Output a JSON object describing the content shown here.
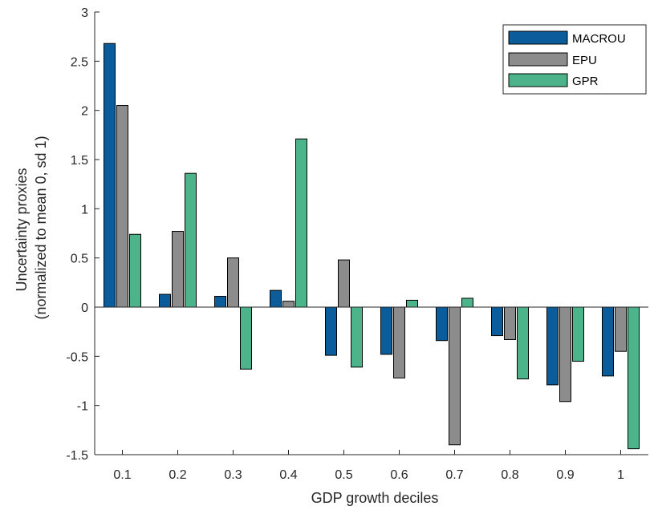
{
  "chart_data": {
    "type": "bar",
    "title": "",
    "xlabel": "GDP growth deciles",
    "ylabel_lines": [
      "Uncertainty proxies",
      "(normalized to mean 0, sd 1)"
    ],
    "categories": [
      "0.1",
      "0.2",
      "0.3",
      "0.4",
      "0.5",
      "0.6",
      "0.7",
      "0.8",
      "0.9",
      "1"
    ],
    "ylim": [
      -1.5,
      3
    ],
    "yticks": [
      -1.5,
      -1,
      -0.5,
      0,
      0.5,
      1,
      1.5,
      2,
      2.5,
      3
    ],
    "ytick_labels": [
      "-1.5",
      "-1",
      "-0.5",
      "0",
      "0.5",
      "1",
      "1.5",
      "2",
      "2.5",
      "3"
    ],
    "grid": false,
    "legend_position": "top-right",
    "series": [
      {
        "name": "MACROU",
        "color": "#0a5c9a",
        "values": [
          2.68,
          0.13,
          0.11,
          0.17,
          -0.49,
          -0.48,
          -0.34,
          -0.29,
          -0.79,
          -0.7
        ]
      },
      {
        "name": "EPU",
        "color": "#8c8c8c",
        "values": [
          2.05,
          0.77,
          0.5,
          0.06,
          0.48,
          -0.72,
          -1.4,
          -0.33,
          -0.96,
          -0.45
        ]
      },
      {
        "name": "GPR",
        "color": "#4cb38a",
        "values": [
          0.74,
          1.36,
          -0.63,
          1.71,
          -0.61,
          0.07,
          0.09,
          -0.73,
          -0.55,
          -1.44
        ]
      }
    ]
  }
}
